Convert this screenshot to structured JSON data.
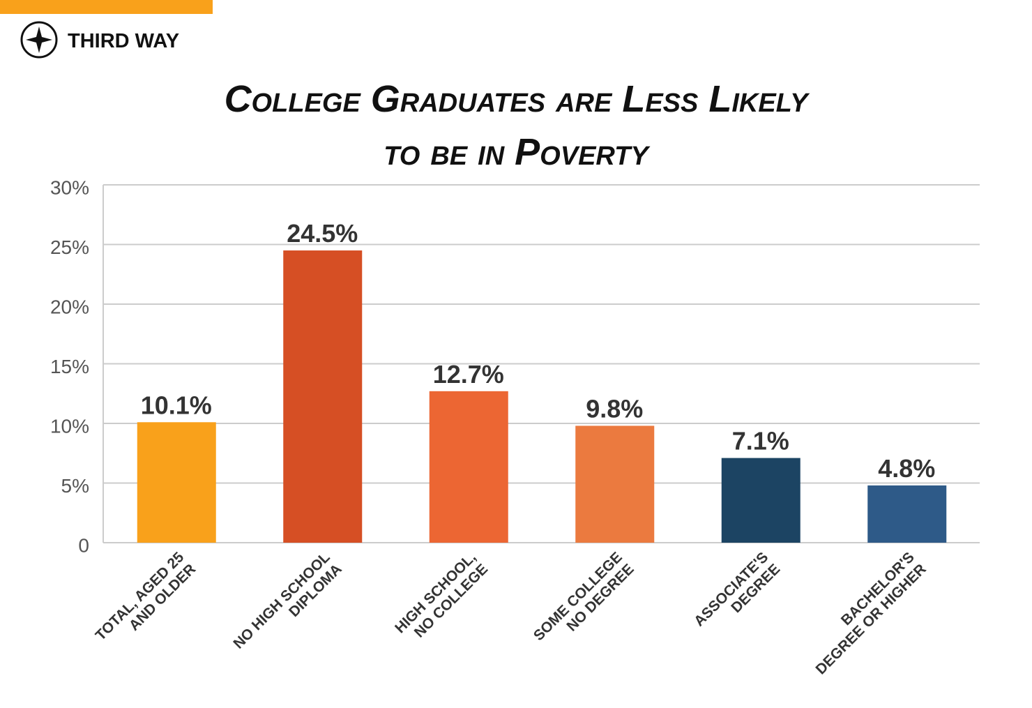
{
  "logo_text": "THIRD WAY",
  "chart_data": {
    "type": "bar",
    "title": [
      "College Graduates are Less Likely",
      "to be in Poverty"
    ],
    "categories": [
      [
        "TOTAL, AGED 25",
        "AND OLDER"
      ],
      [
        "NO HIGH SCHOOL",
        "DIPLOMA"
      ],
      [
        "HIGH SCHOOL,",
        "NO COLLEGE"
      ],
      [
        "SOME COLLEGE",
        "NO DEGREE"
      ],
      [
        "ASSOCIATE'S",
        "DEGREE"
      ],
      [
        "BACHELOR'S",
        "DEGREE OR HIGHER"
      ]
    ],
    "values": [
      10.1,
      24.5,
      12.7,
      9.8,
      7.1,
      4.8
    ],
    "value_labels": [
      "10.1%",
      "24.5%",
      "12.7%",
      "9.8%",
      "7.1%",
      "4.8%"
    ],
    "colors": [
      "#f9a11b",
      "#d64f24",
      "#ec6633",
      "#eb7a3f",
      "#1c4463",
      "#2e5a88"
    ],
    "ylim": [
      0,
      30
    ],
    "yticks": [
      0,
      {
        "value": 5,
        "label": "5%"
      },
      {
        "value": 10,
        "label": "10%"
      },
      {
        "value": 15,
        "label": "15%"
      },
      {
        "value": 20,
        "label": "20%"
      },
      {
        "value": 25,
        "label": "25%"
      },
      {
        "value": 30,
        "label": "30%"
      }
    ],
    "grid": true
  }
}
